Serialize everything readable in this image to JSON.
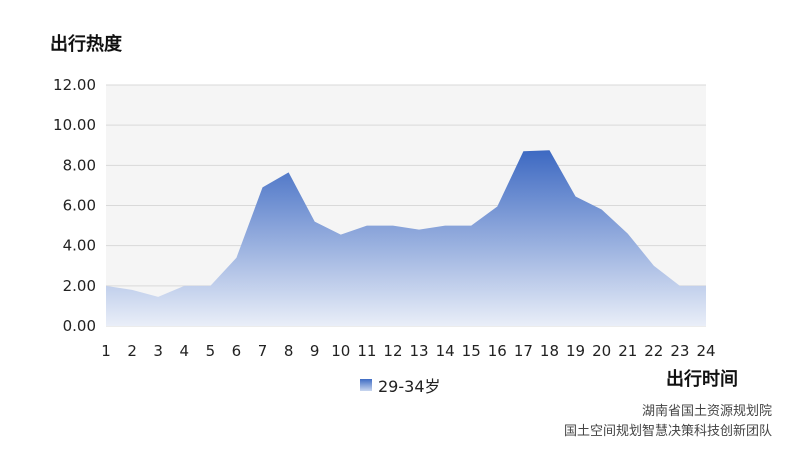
{
  "chart_data": {
    "type": "area",
    "title": "",
    "ylabel": "出行热度",
    "xlabel": "出行时间",
    "x": [
      1,
      2,
      3,
      4,
      5,
      6,
      7,
      8,
      9,
      10,
      11,
      12,
      13,
      14,
      15,
      16,
      17,
      18,
      19,
      20,
      21,
      22,
      23,
      24
    ],
    "y_ticks": [
      "0.00",
      "2.00",
      "4.00",
      "6.00",
      "8.00",
      "10.00",
      "12.00"
    ],
    "ylim": [
      0,
      12
    ],
    "grid": true,
    "legend": "bottom",
    "series": [
      {
        "name": "29-34岁",
        "values": [
          2.0,
          1.8,
          1.45,
          2.0,
          2.0,
          3.4,
          6.9,
          7.65,
          5.2,
          4.55,
          5.0,
          5.0,
          4.8,
          5.0,
          5.0,
          5.95,
          8.7,
          8.75,
          6.45,
          5.8,
          4.6,
          3.0,
          2.0,
          2.0
        ]
      }
    ],
    "colors": {
      "area_top": "#3d69c2",
      "area_bottom": "#e9eef8",
      "grid": "#d9d9d9",
      "plot_bg": "#f5f5f5"
    }
  },
  "credits": {
    "line1": "湖南省国土资源规划院",
    "line2": "国土空间规划智慧决策科技创新团队"
  }
}
